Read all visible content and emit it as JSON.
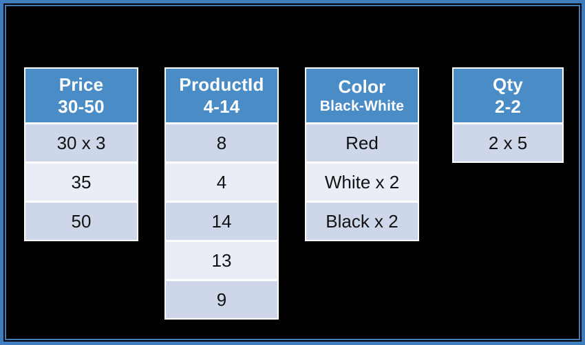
{
  "slide": {
    "background": "#000000",
    "border_color": "#3E7DBE"
  },
  "colors": {
    "header_bg": "#4A8CC6",
    "header_text": "#FFFFFF",
    "row_dark_bg": "#CDD7E9",
    "row_light_bg": "#E9EDF5",
    "row_text": "#121212",
    "table_border": "#FFFFFF"
  },
  "tables": [
    {
      "id": "price",
      "header_line1": "Price",
      "header_line2": "30-50",
      "rows": [
        "30 x 3",
        "35",
        "50"
      ]
    },
    {
      "id": "productid",
      "header_line1": "ProductId",
      "header_line2": "4-14",
      "rows": [
        "8",
        "4",
        "14",
        "13",
        "9"
      ]
    },
    {
      "id": "color",
      "header_line1": "Color",
      "header_line2": "Black-White",
      "rows": [
        "Red",
        "White x 2",
        "Black x 2"
      ]
    },
    {
      "id": "qty",
      "header_line1": "Qty",
      "header_line2": "2-2",
      "rows": [
        "2 x 5"
      ]
    }
  ]
}
